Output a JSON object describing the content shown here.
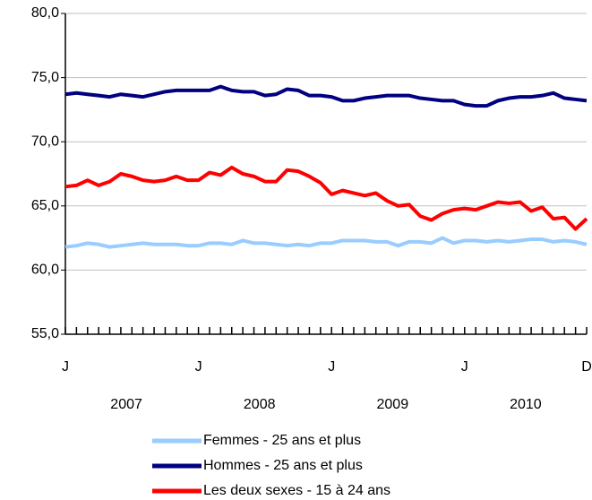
{
  "chart_data": {
    "type": "line",
    "categories": [
      "J",
      null,
      null,
      null,
      null,
      null,
      null,
      null,
      null,
      null,
      null,
      null,
      "J",
      null,
      null,
      null,
      null,
      null,
      null,
      null,
      null,
      null,
      null,
      null,
      "J",
      null,
      null,
      null,
      null,
      null,
      null,
      null,
      null,
      null,
      null,
      null,
      "J",
      null,
      null,
      null,
      null,
      null,
      null,
      null,
      null,
      null,
      null,
      "D"
    ],
    "year_labels": [
      "2007",
      "2008",
      "2009",
      "2010"
    ],
    "ylim": [
      55,
      80
    ],
    "yticks": [
      {
        "value": 55,
        "label": "55,0"
      },
      {
        "value": 60,
        "label": "60,0"
      },
      {
        "value": 65,
        "label": "65,0"
      },
      {
        "value": 70,
        "label": "70,0"
      },
      {
        "value": 75,
        "label": "75,0"
      },
      {
        "value": 80,
        "label": "80,0"
      }
    ],
    "grid": true,
    "series": [
      {
        "name": "Femmes - 25 ans et plus",
        "color": "#99ccff",
        "values": [
          61.8,
          61.9,
          62.1,
          62.0,
          61.8,
          61.9,
          62.0,
          62.1,
          62.0,
          62.0,
          62.0,
          61.9,
          61.9,
          62.1,
          62.1,
          62.0,
          62.3,
          62.1,
          62.1,
          62.0,
          61.9,
          62.0,
          61.9,
          62.1,
          62.1,
          62.3,
          62.3,
          62.3,
          62.2,
          62.2,
          61.9,
          62.2,
          62.2,
          62.1,
          62.5,
          62.1,
          62.3,
          62.3,
          62.2,
          62.3,
          62.2,
          62.3,
          62.4,
          62.4,
          62.2,
          62.3,
          62.2,
          62.0
        ]
      },
      {
        "name": "Hommes - 25 ans et plus",
        "color": "#000080",
        "values": [
          73.7,
          73.8,
          73.7,
          73.6,
          73.5,
          73.7,
          73.6,
          73.5,
          73.7,
          73.9,
          74.0,
          74.0,
          74.0,
          74.0,
          74.3,
          74.0,
          73.9,
          73.9,
          73.6,
          73.7,
          74.1,
          74.0,
          73.6,
          73.6,
          73.5,
          73.2,
          73.2,
          73.4,
          73.5,
          73.6,
          73.6,
          73.6,
          73.4,
          73.3,
          73.2,
          73.2,
          72.9,
          72.8,
          72.8,
          73.2,
          73.4,
          73.5,
          73.5,
          73.6,
          73.8,
          73.4,
          73.3,
          73.2
        ]
      },
      {
        "name": "Les deux sexes - 15 à 24 ans",
        "color": "#ff0000",
        "values": [
          66.5,
          66.6,
          67.0,
          66.6,
          66.9,
          67.5,
          67.3,
          67.0,
          66.9,
          67.0,
          67.3,
          67.0,
          67.0,
          67.6,
          67.4,
          68.0,
          67.5,
          67.3,
          66.9,
          66.9,
          67.8,
          67.7,
          67.3,
          66.8,
          65.9,
          66.2,
          66.0,
          65.8,
          66.0,
          65.4,
          65.0,
          65.1,
          64.2,
          63.9,
          64.4,
          64.7,
          64.8,
          64.7,
          65.0,
          65.3,
          65.2,
          65.3,
          64.6,
          64.9,
          64.0,
          64.1,
          63.2,
          64.0
        ]
      }
    ]
  }
}
